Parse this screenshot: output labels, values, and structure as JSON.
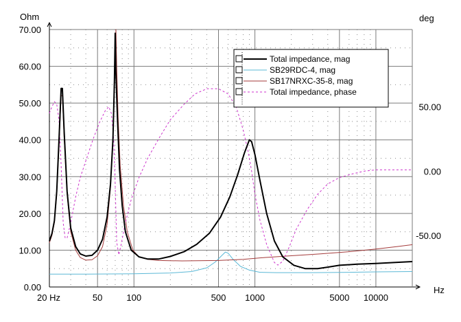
{
  "chart_data": {
    "type": "line",
    "x_unit": "Hz",
    "y_left_unit": "Ohm",
    "y_right_unit": "deg",
    "x_scale": "log",
    "xlim": [
      20,
      20000
    ],
    "ylim_left": [
      0,
      70
    ],
    "ylim_right": [
      -90,
      110
    ],
    "x_ticks": [
      {
        "value": 20,
        "label": "20 Hz"
      },
      {
        "value": 50,
        "label": "50"
      },
      {
        "value": 100,
        "label": "100"
      },
      {
        "value": 500,
        "label": "500"
      },
      {
        "value": 1000,
        "label": "1000"
      },
      {
        "value": 5000,
        "label": "5000"
      },
      {
        "value": 10000,
        "label": "10000"
      }
    ],
    "y_left_ticks": [
      {
        "value": 0,
        "label": "0.00"
      },
      {
        "value": 10,
        "label": "10.00"
      },
      {
        "value": 20,
        "label": "20.00"
      },
      {
        "value": 30,
        "label": "30.00"
      },
      {
        "value": 40,
        "label": "40.00"
      },
      {
        "value": 50,
        "label": "50.00"
      },
      {
        "value": 60,
        "label": "60.00"
      },
      {
        "value": 70,
        "label": "70.00"
      }
    ],
    "y_right_ticks": [
      {
        "value": 50,
        "label": "50.00"
      },
      {
        "value": 0,
        "label": "0.00"
      },
      {
        "value": -50,
        "label": "-50.00"
      }
    ],
    "grid": true,
    "legend_position": "top-right",
    "series": [
      {
        "name": "Total impedance, mag",
        "axis": "left",
        "color": "#000000",
        "width": 2,
        "dash": "",
        "points": [
          [
            20,
            12.5
          ],
          [
            21,
            14.5
          ],
          [
            22,
            18
          ],
          [
            23,
            26
          ],
          [
            24,
            40
          ],
          [
            25,
            54
          ],
          [
            25.6,
            54
          ],
          [
            26.5,
            42
          ],
          [
            28,
            26
          ],
          [
            30,
            16
          ],
          [
            33,
            11
          ],
          [
            36,
            9
          ],
          [
            40,
            8.4
          ],
          [
            45,
            8.6
          ],
          [
            50,
            10
          ],
          [
            55,
            13
          ],
          [
            60,
            19
          ],
          [
            64,
            28
          ],
          [
            67,
            40
          ],
          [
            69,
            56
          ],
          [
            70,
            69
          ],
          [
            71,
            58
          ],
          [
            73,
            46
          ],
          [
            76,
            32
          ],
          [
            80,
            22
          ],
          [
            85,
            15
          ],
          [
            95,
            10
          ],
          [
            110,
            8.2
          ],
          [
            130,
            7.6
          ],
          [
            160,
            7.6
          ],
          [
            200,
            8.3
          ],
          [
            260,
            9.6
          ],
          [
            330,
            11.6
          ],
          [
            420,
            14.6
          ],
          [
            520,
            19
          ],
          [
            620,
            24.5
          ],
          [
            720,
            30.5
          ],
          [
            820,
            36.5
          ],
          [
            900,
            40
          ],
          [
            940,
            39.5
          ],
          [
            1000,
            36
          ],
          [
            1100,
            29
          ],
          [
            1250,
            20
          ],
          [
            1450,
            12.5
          ],
          [
            1700,
            8.2
          ],
          [
            2100,
            5.9
          ],
          [
            2600,
            5.0
          ],
          [
            3300,
            5.0
          ],
          [
            4000,
            5.4
          ],
          [
            5000,
            5.9
          ],
          [
            7000,
            6.2
          ],
          [
            10000,
            6.4
          ],
          [
            15000,
            6.7
          ],
          [
            20000,
            6.9
          ]
        ]
      },
      {
        "name": "SB29RDC-4, mag",
        "axis": "left",
        "color": "#5BB8D6",
        "width": 1,
        "dash": "",
        "points": [
          [
            20,
            3.5
          ],
          [
            40,
            3.5
          ],
          [
            100,
            3.6
          ],
          [
            200,
            3.8
          ],
          [
            300,
            4.2
          ],
          [
            400,
            5.2
          ],
          [
            470,
            6.8
          ],
          [
            530,
            8.5
          ],
          [
            570,
            9.5
          ],
          [
            600,
            9.2
          ],
          [
            660,
            7.5
          ],
          [
            760,
            5.6
          ],
          [
            900,
            4.6
          ],
          [
            1100,
            4.0
          ],
          [
            1500,
            3.9
          ],
          [
            3000,
            3.9
          ],
          [
            6000,
            4.0
          ],
          [
            10000,
            4.1
          ],
          [
            20000,
            4.2
          ]
        ]
      },
      {
        "name": "SB17NRXC-35-8, mag",
        "axis": "left",
        "color": "#A33A3A",
        "width": 1,
        "dash": "",
        "points": [
          [
            20,
            12
          ],
          [
            21,
            14
          ],
          [
            22,
            17.5
          ],
          [
            23,
            25
          ],
          [
            24,
            38
          ],
          [
            25,
            52
          ],
          [
            25.6,
            52
          ],
          [
            26.5,
            40
          ],
          [
            28,
            25
          ],
          [
            30,
            15
          ],
          [
            33,
            10
          ],
          [
            36,
            8
          ],
          [
            40,
            7.3
          ],
          [
            45,
            7.4
          ],
          [
            50,
            8.5
          ],
          [
            55,
            11
          ],
          [
            60,
            17
          ],
          [
            64,
            27
          ],
          [
            67,
            40
          ],
          [
            69,
            58
          ],
          [
            71,
            70
          ],
          [
            72,
            60
          ],
          [
            74,
            46
          ],
          [
            77,
            33
          ],
          [
            82,
            22
          ],
          [
            88,
            15
          ],
          [
            98,
            10
          ],
          [
            110,
            8.2
          ],
          [
            130,
            7.5
          ],
          [
            160,
            7.2
          ],
          [
            250,
            7.1
          ],
          [
            500,
            7.2
          ],
          [
            800,
            7.5
          ],
          [
            1200,
            8.0
          ],
          [
            2000,
            8.5
          ],
          [
            3500,
            9.0
          ],
          [
            6000,
            9.6
          ],
          [
            10000,
            10.3
          ],
          [
            15000,
            11.0
          ],
          [
            20000,
            11.5
          ]
        ]
      },
      {
        "name": "Total impedance, phase",
        "axis": "right",
        "color": "#CC33CC",
        "width": 1,
        "dash": "3,3",
        "points": [
          [
            20,
            45
          ],
          [
            21,
            50
          ],
          [
            22,
            54
          ],
          [
            23,
            52
          ],
          [
            24,
            40
          ],
          [
            25,
            5
          ],
          [
            26,
            -40
          ],
          [
            27,
            -52
          ],
          [
            28,
            -52
          ],
          [
            30,
            -40
          ],
          [
            33,
            -20
          ],
          [
            36,
            -5
          ],
          [
            40,
            8
          ],
          [
            46,
            25
          ],
          [
            52,
            38
          ],
          [
            58,
            47
          ],
          [
            62,
            50
          ],
          [
            65,
            45
          ],
          [
            68,
            25
          ],
          [
            70,
            -10
          ],
          [
            72,
            -55
          ],
          [
            75,
            -65
          ],
          [
            78,
            -58
          ],
          [
            85,
            -40
          ],
          [
            95,
            -22
          ],
          [
            110,
            -5
          ],
          [
            130,
            10
          ],
          [
            160,
            25
          ],
          [
            200,
            40
          ],
          [
            260,
            52
          ],
          [
            320,
            60
          ],
          [
            400,
            64
          ],
          [
            500,
            64
          ],
          [
            600,
            60
          ],
          [
            700,
            50
          ],
          [
            800,
            32
          ],
          [
            880,
            15
          ],
          [
            940,
            0
          ],
          [
            1000,
            -18
          ],
          [
            1100,
            -38
          ],
          [
            1250,
            -57
          ],
          [
            1450,
            -71
          ],
          [
            1550,
            -73
          ],
          [
            1700,
            -70
          ],
          [
            1900,
            -60
          ],
          [
            2200,
            -45
          ],
          [
            2700,
            -30
          ],
          [
            3300,
            -18
          ],
          [
            4000,
            -10
          ],
          [
            5000,
            -5
          ],
          [
            6500,
            -2
          ],
          [
            8000,
            0
          ],
          [
            10000,
            1
          ],
          [
            14000,
            1
          ],
          [
            20000,
            1
          ]
        ]
      }
    ]
  }
}
